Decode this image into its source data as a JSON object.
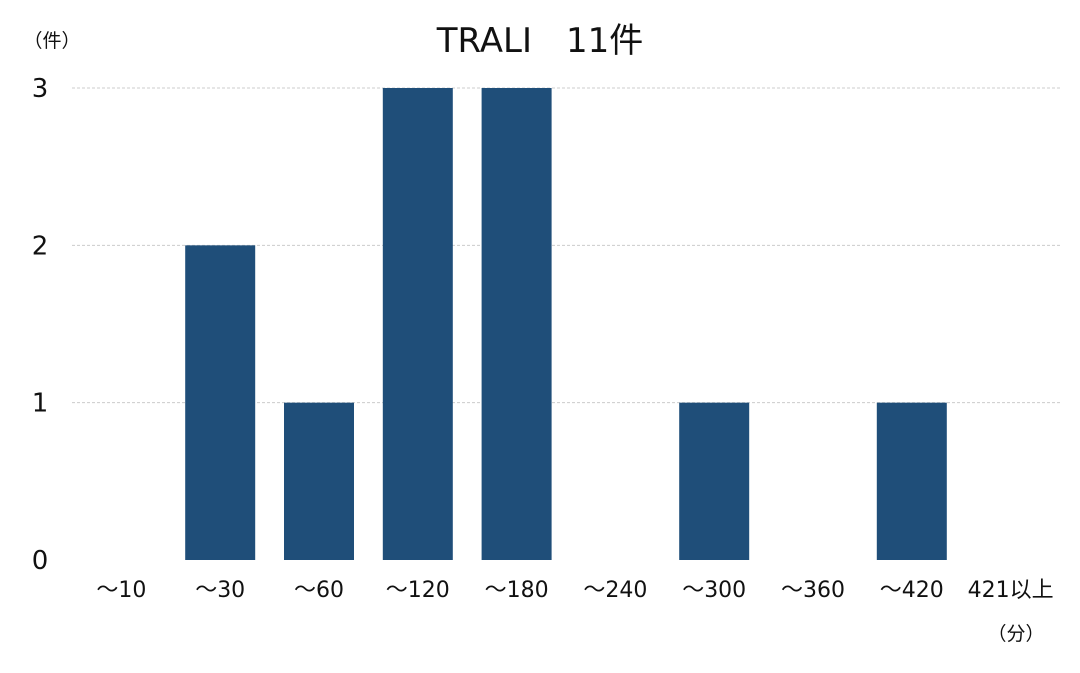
{
  "chart_data": {
    "type": "bar",
    "title": "TRALI　11件",
    "ylabel": "（件）",
    "xlabel": "（分）",
    "categories": [
      "～10",
      "～30",
      "～60",
      "～120",
      "～180",
      "～240",
      "～300",
      "～360",
      "～420",
      "421以上"
    ],
    "values": [
      0,
      2,
      1,
      3,
      3,
      0,
      1,
      0,
      1,
      0
    ],
    "ylim": [
      0,
      3
    ],
    "yticks": [
      0,
      1,
      2,
      3
    ],
    "grid": true,
    "legend": "none",
    "bar_color": "#1F4E79",
    "grid_color": "#CCCCCC"
  }
}
